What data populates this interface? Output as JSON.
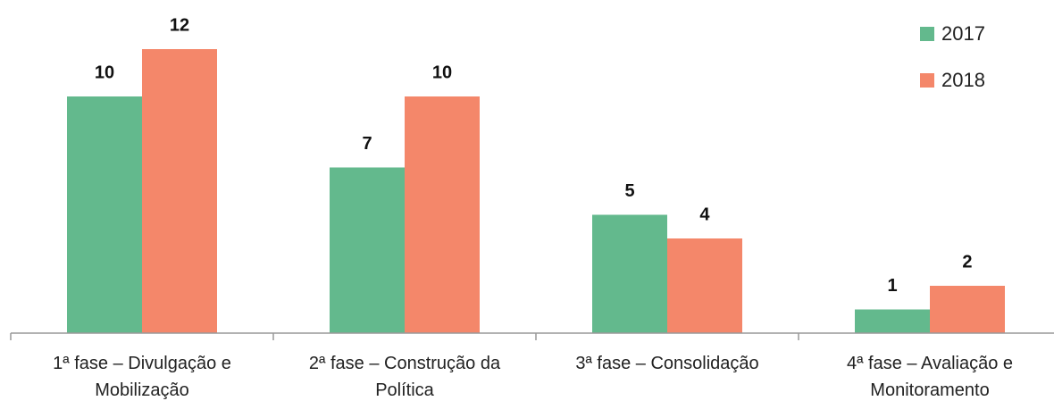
{
  "chart_data": {
    "type": "bar",
    "categories": [
      "1ª fase – Divulgação e Mobilização",
      "2ª fase – Construção da Política",
      "3ª fase – Consolidação",
      "4ª fase – Avaliação e Monitoramento"
    ],
    "series": [
      {
        "name": "2017",
        "color": "#63b98d",
        "values": [
          10,
          7,
          5,
          1
        ]
      },
      {
        "name": "2018",
        "color": "#f4876a",
        "values": [
          12,
          10,
          4,
          2
        ]
      }
    ],
    "ylim": [
      0,
      12
    ]
  }
}
